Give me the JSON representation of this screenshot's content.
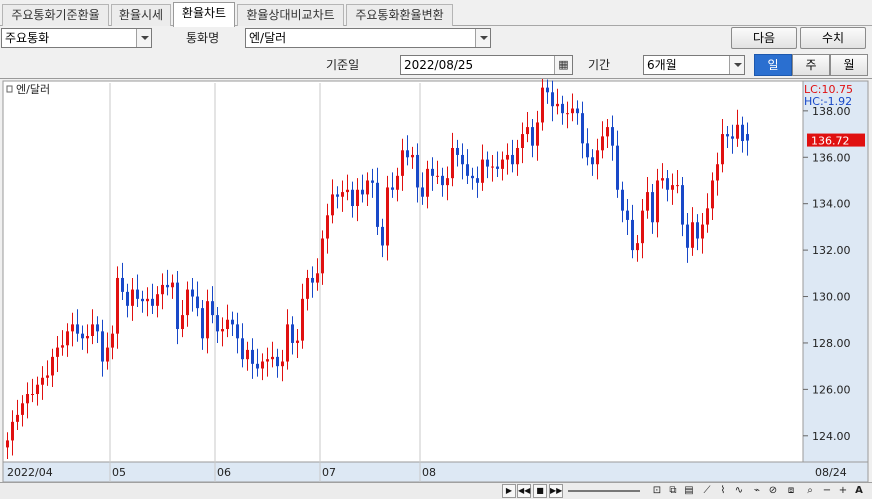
{
  "tabs": [
    {
      "label": "주요통화기준환율"
    },
    {
      "label": "환율시세"
    },
    {
      "label": "환율차트"
    },
    {
      "label": "환율상대비교차트"
    },
    {
      "label": "주요통화환율변환"
    }
  ],
  "controls": {
    "group_select": "주요통화",
    "currency_label": "통화명",
    "currency_select": "엔/달러",
    "next_button": "다음",
    "query_button": "수치",
    "date_label": "기준일",
    "date_value": "2022/08/25",
    "period_label": "기간",
    "period_select": "6개월",
    "interval_day": "일",
    "interval_week": "주",
    "interval_month": "월"
  },
  "chart_legend": {
    "series_name": "엔/달러",
    "lc_text": "LC:10.75",
    "hc_text": "HC:-1.92",
    "current_price": "136.72"
  },
  "colors": {
    "up": "#e01010",
    "down": "#1848c8",
    "current_badge": "#e01010",
    "active_segment": "#2a6fd0"
  },
  "chart_data": {
    "type": "candlestick",
    "series_name": "엔/달러",
    "ylim": [
      123,
      139.2
    ],
    "y_ticks": [
      "138.00",
      "136.00",
      "134.00",
      "132.00",
      "130.00",
      "128.00",
      "126.00",
      "124.00"
    ],
    "x_labels": [
      "2022/04",
      "05",
      "06",
      "07",
      "08",
      "08/24"
    ],
    "current_value": 136.72,
    "close": [
      123.8,
      124.6,
      124.9,
      125.4,
      125.8,
      125.8,
      126.2,
      126.5,
      126.6,
      127.4,
      127.8,
      127.9,
      128.5,
      128.8,
      128.4,
      128.2,
      128.3,
      128.8,
      128.5,
      127.2,
      127.8,
      128.4,
      130.8,
      130.2,
      129.6,
      130.3,
      129.9,
      129.8,
      129.9,
      129.6,
      130.1,
      130.5,
      130.4,
      130.6,
      128.6,
      129.2,
      130.3,
      130.0,
      129.5,
      128.2,
      129.8,
      129.2,
      128.5,
      128.6,
      129.0,
      128.8,
      128.2,
      127.3,
      127.7,
      127.1,
      126.9,
      127.2,
      127.3,
      127.4,
      127.0,
      127.2,
      128.8,
      128.0,
      128.1,
      129.9,
      130.8,
      130.6,
      131.0,
      132.5,
      133.5,
      134.4,
      134.3,
      134.5,
      134.6,
      133.9,
      134.6,
      134.4,
      135.0,
      134.9,
      133.0,
      132.2,
      134.7,
      134.6,
      135.2,
      136.3,
      136.0,
      136.1,
      134.7,
      134.3,
      135.5,
      135.2,
      135.2,
      134.8,
      135.1,
      136.4,
      136.1,
      135.7,
      135.2,
      135.1,
      134.9,
      135.9,
      135.6,
      135.6,
      135.5,
      135.9,
      136.1,
      135.7,
      136.4,
      137.0,
      137.3,
      136.5,
      137.5,
      139.0,
      138.8,
      138.2,
      138.3,
      137.9,
      137.9,
      138.1,
      137.9,
      136.6,
      136.0,
      135.7,
      136.3,
      136.9,
      137.3,
      136.5,
      134.6,
      133.7,
      133.3,
      132.0,
      132.3,
      133.7,
      134.5,
      133.2,
      135.0,
      135.1,
      134.6,
      134.8,
      134.8,
      133.1,
      132.1,
      133.2,
      132.5,
      133.1,
      133.8,
      135.0,
      135.7,
      137.0,
      136.9,
      136.8,
      137.4,
      136.7,
      136.72
    ],
    "open": [
      123.5,
      123.8,
      124.6,
      124.9,
      125.4,
      125.8,
      125.8,
      126.2,
      126.5,
      126.6,
      127.4,
      127.8,
      127.9,
      128.5,
      128.8,
      128.4,
      128.2,
      128.3,
      128.8,
      128.5,
      127.2,
      127.8,
      128.4,
      130.8,
      130.2,
      129.6,
      130.3,
      129.9,
      129.8,
      129.9,
      129.6,
      130.1,
      130.5,
      130.4,
      130.6,
      128.6,
      129.2,
      130.3,
      130.0,
      129.5,
      128.2,
      129.8,
      129.2,
      128.5,
      128.6,
      129.0,
      128.8,
      128.2,
      127.3,
      127.7,
      127.1,
      126.9,
      127.2,
      127.3,
      127.4,
      127.0,
      127.2,
      128.8,
      128.0,
      128.1,
      129.9,
      130.8,
      130.6,
      131.0,
      132.5,
      133.5,
      134.4,
      134.3,
      134.5,
      134.6,
      133.9,
      134.6,
      134.4,
      135.0,
      134.9,
      133.0,
      132.2,
      134.7,
      134.6,
      135.2,
      136.3,
      136.0,
      136.1,
      134.7,
      134.3,
      135.5,
      135.2,
      135.2,
      134.8,
      135.1,
      136.4,
      136.1,
      135.7,
      135.2,
      135.1,
      134.9,
      135.9,
      135.6,
      135.6,
      135.5,
      135.9,
      136.1,
      135.7,
      136.4,
      137.0,
      137.3,
      136.5,
      137.5,
      139.0,
      138.8,
      138.2,
      138.3,
      137.9,
      137.9,
      138.1,
      137.9,
      136.6,
      136.0,
      135.7,
      136.3,
      136.9,
      137.3,
      136.5,
      134.6,
      133.7,
      133.3,
      132.0,
      132.3,
      133.7,
      134.5,
      133.2,
      135.0,
      135.1,
      134.6,
      134.8,
      134.8,
      133.1,
      132.1,
      133.2,
      132.5,
      133.1,
      133.8,
      135.0,
      135.7,
      137.0,
      136.9,
      136.8,
      137.4,
      137.0
    ]
  }
}
